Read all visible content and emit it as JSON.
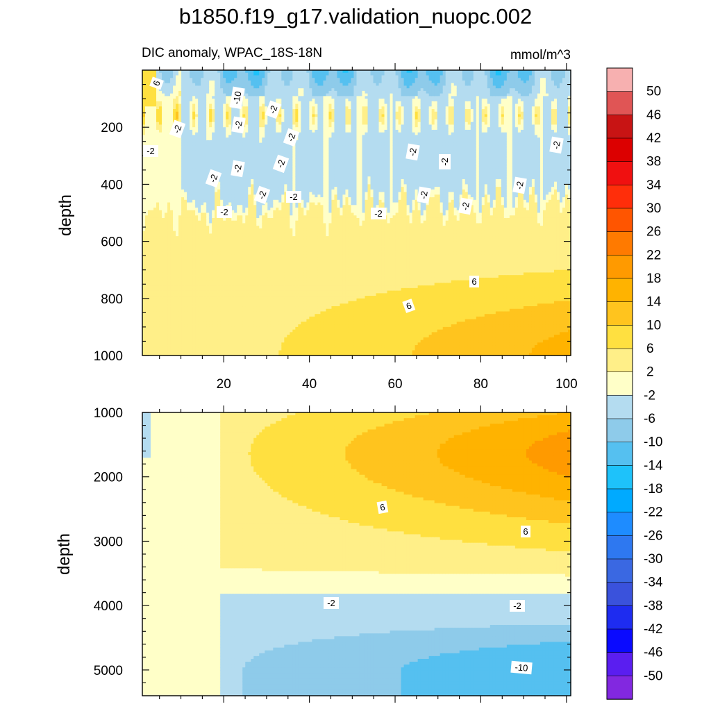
{
  "title": "b1850.f19_g17.validation_nuopc.002",
  "colorbar": {
    "levels": [
      "50",
      "46",
      "42",
      "38",
      "34",
      "30",
      "26",
      "22",
      "18",
      "14",
      "10",
      "6",
      "2",
      "-2",
      "-6",
      "-10",
      "-14",
      "-18",
      "-22",
      "-26",
      "-30",
      "-34",
      "-38",
      "-42",
      "-46",
      "-50"
    ],
    "colors": [
      "#f7b0b0",
      "#e05555",
      "#c81414",
      "#dc0000",
      "#f01010",
      "#ff2e0a",
      "#ff5500",
      "#ff7a00",
      "#ff9a00",
      "#ffb300",
      "#ffc41e",
      "#ffe040",
      "#ffef88",
      "#ffffc8",
      "#b4dcf0",
      "#8ecbea",
      "#55c0f0",
      "#1ec2fa",
      "#00aaff",
      "#1e8cff",
      "#2e78f0",
      "#3a68e2",
      "#3a52dc",
      "#1e2cf0",
      "#0a0aff",
      "#5a1ef0",
      "#8228e0"
    ]
  },
  "chart_data": [
    {
      "type": "heatmap",
      "panel": "upper",
      "subtitle_left": "DIC anomaly, WPAC_18S-18N",
      "subtitle_right": "mmol/m^3",
      "xlabel": "",
      "ylabel": "depth",
      "xlim": [
        1,
        101
      ],
      "ylim": [
        0,
        1000
      ],
      "y_reversed": true,
      "x_ticks": [
        "20",
        "40",
        "60",
        "80",
        "100"
      ],
      "y_ticks": [
        "200",
        "400",
        "600",
        "800",
        "1000"
      ],
      "contour_labels": [
        "6",
        "-10",
        "-2",
        "-2",
        "-2",
        "-2",
        "-2",
        "-2",
        "-2",
        "-2",
        "-2",
        "-2",
        "-2",
        "-2",
        "-2",
        "-2",
        "-2",
        "-2",
        "-2",
        "-2",
        "6",
        "6"
      ],
      "description_values": {
        "surface_layer_0_100m": "-6 to -18",
        "thermocline_100_550m": "-2 to -6 with warm 2 to 14 streaks near 150 m",
        "deep_550_1000m": "2 to 14, increasing with x"
      }
    },
    {
      "type": "heatmap",
      "panel": "lower",
      "xlabel": "",
      "ylabel": "depth",
      "xlim": [
        1,
        101
      ],
      "ylim": [
        1000,
        5400
      ],
      "y_reversed": true,
      "x_ticks": [],
      "y_ticks": [
        "1000",
        "2000",
        "3000",
        "4000",
        "5000"
      ],
      "contour_labels": [
        "6",
        "6",
        "-2",
        "-2",
        "-10"
      ],
      "description_values": {
        "upper_deep_1000_2500m": "6 to 18 maximum near x=100, depth 1500",
        "middle_3000_3800m": "-2 to 2",
        "bottom_4000_5400m": "-2 to -14"
      }
    }
  ]
}
